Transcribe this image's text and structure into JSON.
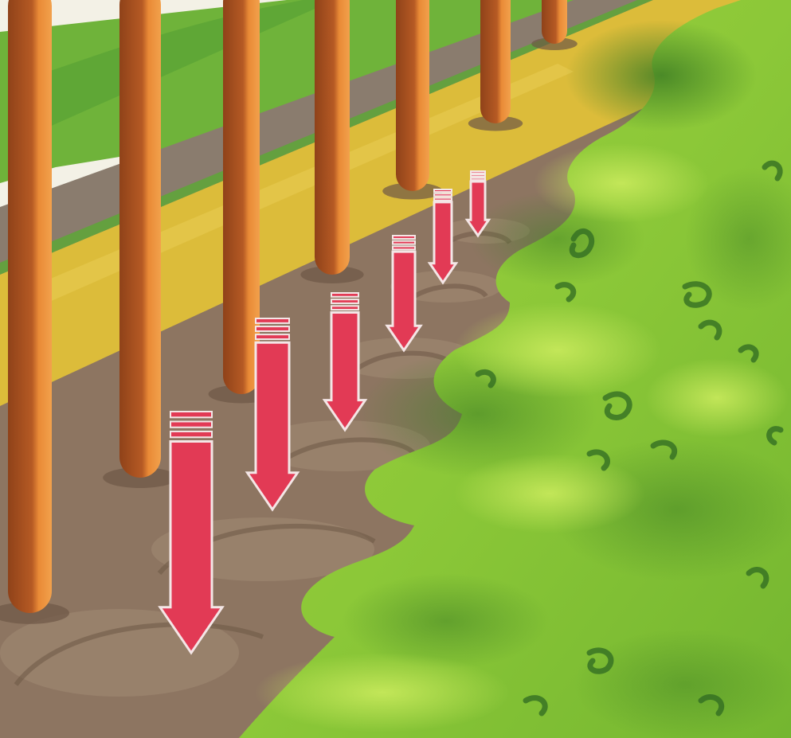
{
  "scene": {
    "description_tag": "illustration",
    "colors": {
      "sky": "#f3f1e6",
      "grass_far": "#6fb33a",
      "grass_far_dark": "#3e8a2c",
      "yellow_strip": "#dcbc3a",
      "yellow_strip_light": "#e8cc52",
      "path_gray": "#8a7c6e",
      "soil": "#8d7561",
      "soil_dark": "#6e5746",
      "soil_light": "#a38b74",
      "hedge_light": "#a9d645",
      "hedge_mid": "#7fbe32",
      "hedge_dark": "#3f7f24",
      "stake_dark": "#9a4a1d",
      "stake_light": "#e98a36",
      "arrow_fill": "#e23a55",
      "arrow_outline": "#f4e6e6"
    },
    "stakes_count": 7,
    "arrows_count": 6,
    "arrow_direction": "down",
    "arrow_icon": "down-arrow-icon"
  }
}
